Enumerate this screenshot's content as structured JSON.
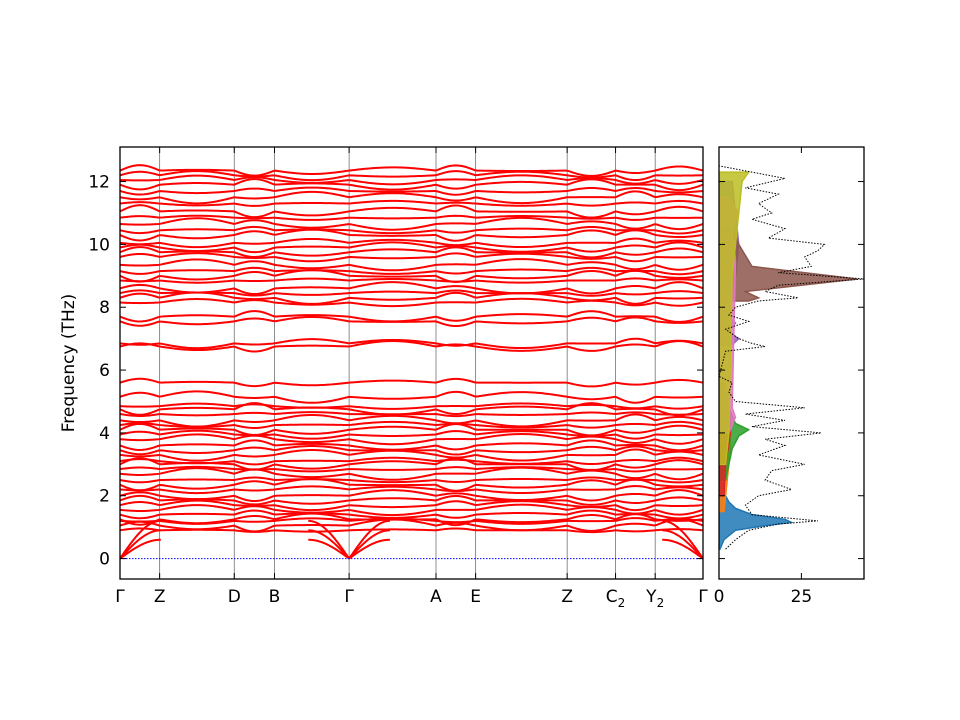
{
  "chart_data": [
    {
      "type": "line",
      "title": "",
      "xlabel": "",
      "ylabel": "Frequency (THz)",
      "ylim": [
        -0.65,
        13.1
      ],
      "yticks": [
        0,
        2,
        4,
        6,
        8,
        10,
        12
      ],
      "grid": false,
      "legend": "none",
      "x_path_labels": [
        {
          "label": "Γ",
          "sub": "",
          "x": 0.0
        },
        {
          "label": "Z",
          "sub": "",
          "x": 0.068
        },
        {
          "label": "D",
          "sub": "",
          "x": 0.196
        },
        {
          "label": "B",
          "sub": "",
          "x": 0.265
        },
        {
          "label": "Γ",
          "sub": "",
          "x": 0.393
        },
        {
          "label": "A",
          "sub": "",
          "x": 0.542
        },
        {
          "label": "E",
          "sub": "",
          "x": 0.61
        },
        {
          "label": "Z",
          "sub": "",
          "x": 0.767
        },
        {
          "label": "C",
          "sub": "2",
          "x": 0.85
        },
        {
          "label": "Y",
          "sub": "2",
          "x": 0.918
        },
        {
          "label": "Γ",
          "sub": "",
          "x": 1.0
        }
      ],
      "band_color": "#ff0000",
      "zero_line_color": "#0000ff",
      "band_frequencies_THz": [
        0.9,
        1.05,
        1.2,
        1.25,
        1.4,
        1.55,
        1.7,
        1.85,
        2.0,
        2.2,
        2.35,
        2.5,
        2.7,
        2.85,
        3.0,
        3.1,
        3.3,
        3.45,
        3.6,
        3.8,
        3.95,
        4.1,
        4.25,
        4.4,
        4.6,
        4.75,
        4.85,
        5.15,
        5.6,
        6.75,
        6.85,
        7.55,
        7.7,
        8.15,
        8.3,
        8.45,
        8.6,
        8.85,
        9.0,
        9.15,
        9.35,
        9.6,
        9.75,
        9.9,
        10.05,
        10.3,
        10.45,
        10.65,
        10.85,
        11.05,
        11.3,
        11.5,
        11.7,
        11.9,
        12.05,
        12.2,
        12.35
      ]
    },
    {
      "type": "area",
      "title": "",
      "xlabel": "",
      "ylabel": "",
      "xlim": [
        0,
        44
      ],
      "xticks": [
        0,
        25
      ],
      "ylim": [
        -0.65,
        13.1
      ],
      "total_dos_style": "black dotted",
      "total_dos": {
        "freq": [
          0.3,
          0.6,
          0.9,
          1.1,
          1.2,
          1.4,
          1.7,
          2.0,
          2.2,
          2.5,
          2.8,
          3.0,
          3.3,
          3.6,
          3.8,
          4.0,
          4.2,
          4.4,
          4.6,
          4.8,
          5.0,
          5.3,
          5.6,
          5.8,
          6.6,
          6.75,
          6.85,
          7.0,
          7.3,
          7.55,
          7.75,
          8.0,
          8.2,
          8.3,
          8.5,
          8.7,
          8.9,
          9.1,
          9.3,
          9.6,
          9.8,
          10.0,
          10.2,
          10.5,
          10.8,
          11.0,
          11.3,
          11.6,
          11.8,
          12.1,
          12.3,
          12.5
        ],
        "dos": [
          2,
          5,
          9,
          18,
          30,
          10,
          8,
          12,
          22,
          14,
          16,
          26,
          12,
          20,
          14,
          31,
          10,
          20,
          8,
          26,
          5,
          3,
          4,
          0,
          2,
          14,
          10,
          6,
          2,
          9,
          3,
          5,
          12,
          24,
          14,
          18,
          44,
          18,
          28,
          26,
          30,
          32,
          15,
          20,
          10,
          16,
          12,
          18,
          8,
          20,
          10,
          0
        ]
      },
      "projected_dos": [
        {
          "color": "#1f77b4",
          "freq": [
            0.3,
            0.6,
            0.9,
            1.05,
            1.15,
            1.25,
            1.4,
            1.6,
            1.8,
            2.0,
            2.4,
            3.0,
            5.0
          ],
          "dos": [
            0.3,
            1.5,
            5,
            14,
            22,
            20,
            10,
            5,
            3,
            2,
            1.2,
            0.8,
            0
          ]
        },
        {
          "color": "#ff7f0e",
          "freq": [
            1.5,
            2.5,
            3.5,
            4.5,
            5.5
          ],
          "dos": [
            1.5,
            2.5,
            3.5,
            3,
            1
          ]
        },
        {
          "color": "#2ca02c",
          "freq": [
            2.5,
            3.5,
            3.9,
            4.1,
            4.3,
            4.8,
            5.6
          ],
          "dos": [
            2,
            4,
            6,
            9,
            5,
            3,
            1
          ]
        },
        {
          "color": "#d62728",
          "freq": [
            2.0,
            3.0,
            4.0,
            5.0,
            5.6
          ],
          "dos": [
            1.5,
            2,
            3.5,
            3,
            1.5
          ]
        },
        {
          "color": "#9467bd",
          "freq": [
            6.8,
            7.0,
            7.2,
            7.5,
            7.7,
            8.2,
            9.0,
            10.0,
            11.0,
            12.0
          ],
          "dos": [
            4,
            6,
            3,
            5,
            3,
            4,
            5,
            6,
            5,
            4
          ]
        },
        {
          "color": "#8c564b",
          "freq": [
            8.2,
            8.3,
            8.5,
            8.9,
            9.3,
            10.0,
            10.5
          ],
          "dos": [
            9,
            12,
            8,
            42,
            10,
            6,
            4
          ]
        },
        {
          "color": "#e377c2",
          "freq": [
            4.0,
            4.5,
            4.8,
            9.5,
            10.5,
            11.0,
            11.5
          ],
          "dos": [
            3,
            5,
            4,
            5,
            4,
            6,
            3
          ]
        },
        {
          "color": "#bcbd22",
          "freq": [
            3.0,
            4.0,
            9.0,
            10.0,
            11.0,
            12.0,
            12.3
          ],
          "dos": [
            2,
            3,
            4,
            5,
            6,
            7,
            9
          ]
        }
      ]
    }
  ]
}
